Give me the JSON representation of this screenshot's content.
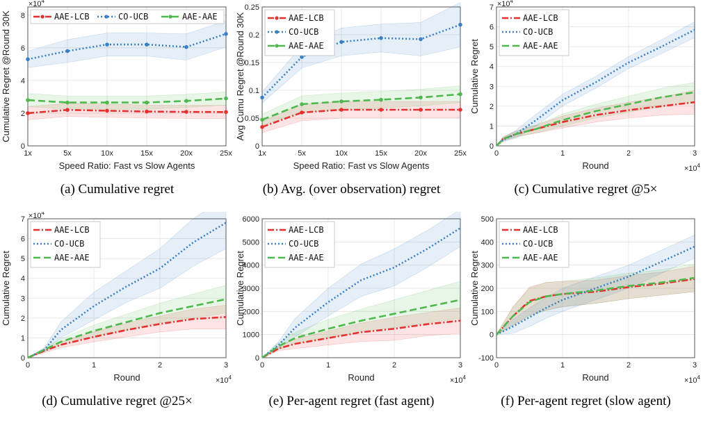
{
  "colors": {
    "lcb": "#e53030",
    "ucb": "#3b80c2",
    "aae": "#4eb84e"
  },
  "chart_data": [
    {
      "type": "line",
      "caption": "(a) Cumulative regret",
      "xlabel": "Speed Ratio: Fast vs Slow Agents",
      "ylabel": "Cumulative Regret @Round 30K",
      "x_categorical": true,
      "x": [
        1,
        5,
        10,
        15,
        20,
        25
      ],
      "x_ticks": [
        1,
        5,
        10,
        15,
        20,
        25
      ],
      "x_tick_labels": [
        "1x",
        "5x",
        "10x",
        "15x",
        "20x",
        "25x"
      ],
      "ylim": [
        0,
        8.5
      ],
      "y_ticks": [
        0,
        2,
        4,
        6,
        8
      ],
      "y_tick_labels": [
        "0",
        "2",
        "4",
        "6",
        "8"
      ],
      "y_multiplier": "×10^4",
      "legend": "top-left-row",
      "series": [
        {
          "name": "AAE-LCB",
          "style": "lcb",
          "values": [
            2.0,
            2.2,
            2.15,
            2.1,
            2.08,
            2.07
          ],
          "band": [
            0.4,
            0.4,
            0.4,
            0.4,
            0.4,
            0.4
          ]
        },
        {
          "name": "CO-UCB",
          "style": "ucb",
          "values": [
            5.3,
            5.8,
            6.2,
            6.2,
            6.05,
            6.85
          ],
          "band": [
            0.5,
            0.7,
            0.7,
            0.7,
            0.8,
            0.8
          ]
        },
        {
          "name": "AAE-AAE",
          "style": "aae",
          "values": [
            2.8,
            2.65,
            2.65,
            2.65,
            2.75,
            2.9
          ],
          "band": [
            0.4,
            0.4,
            0.4,
            0.4,
            0.4,
            0.4
          ]
        }
      ]
    },
    {
      "type": "line",
      "caption": "(b) Avg. (over observation) regret",
      "xlabel": "Speed Ratio: Fast vs Slow Agents",
      "ylabel": "Avg Cumu Regret @Round 30K",
      "x_categorical": true,
      "x": [
        1,
        5,
        10,
        15,
        20,
        25
      ],
      "x_ticks": [
        1,
        5,
        10,
        15,
        20,
        25
      ],
      "x_tick_labels": [
        "1x",
        "5x",
        "10x",
        "15x",
        "20x",
        "25x"
      ],
      "ylim": [
        0,
        0.25
      ],
      "y_ticks": [
        0,
        0.05,
        0.1,
        0.15,
        0.2,
        0.25
      ],
      "y_tick_labels": [
        "0",
        "0.05",
        "0.1",
        "0.15",
        "0.2",
        "0.25"
      ],
      "legend": "top-left",
      "series": [
        {
          "name": "AAE-LCB",
          "style": "lcb",
          "values": [
            0.034,
            0.06,
            0.065,
            0.065,
            0.065,
            0.065
          ],
          "band": [
            0.01,
            0.015,
            0.015,
            0.015,
            0.015,
            0.015
          ]
        },
        {
          "name": "CO-UCB",
          "style": "ucb",
          "values": [
            0.087,
            0.16,
            0.187,
            0.194,
            0.192,
            0.218
          ],
          "band": [
            0.01,
            0.02,
            0.025,
            0.025,
            0.03,
            0.04
          ]
        },
        {
          "name": "AAE-AAE",
          "style": "aae",
          "values": [
            0.047,
            0.075,
            0.08,
            0.083,
            0.087,
            0.093
          ],
          "band": [
            0.01,
            0.015,
            0.015,
            0.015,
            0.015,
            0.015
          ]
        }
      ]
    },
    {
      "type": "line",
      "caption": "(c) Cumulative regret @5×",
      "xlabel": "Round",
      "ylabel": "Cumulative Regret",
      "x_multiplier": "×10^4",
      "y_multiplier": "×10^4",
      "xlim": [
        0,
        3
      ],
      "x_ticks": [
        0,
        1,
        2,
        3
      ],
      "x_tick_labels": [
        "0",
        "1",
        "2",
        "3"
      ],
      "ylim": [
        0,
        7
      ],
      "y_ticks": [
        0,
        1,
        2,
        3,
        4,
        5,
        6,
        7
      ],
      "y_tick_labels": [
        "0",
        "1",
        "2",
        "3",
        "4",
        "5",
        "6",
        "7"
      ],
      "legend": "top-left",
      "x": [
        0,
        0.1,
        0.3,
        0.6,
        1.0,
        1.5,
        2.0,
        2.5,
        3.0
      ],
      "series": [
        {
          "name": "AAE-LCB",
          "style": "lcb",
          "values": [
            0,
            0.35,
            0.6,
            0.85,
            1.2,
            1.55,
            1.8,
            2.0,
            2.2
          ],
          "band": [
            0,
            0.1,
            0.15,
            0.2,
            0.3,
            0.35,
            0.4,
            0.45,
            0.6
          ]
        },
        {
          "name": "CO-UCB",
          "style": "ucb",
          "values": [
            0,
            0.3,
            0.6,
            1.3,
            2.3,
            3.2,
            4.2,
            5.0,
            5.85
          ],
          "band": [
            0,
            0.1,
            0.2,
            0.3,
            0.3,
            0.3,
            0.3,
            0.35,
            0.4
          ]
        },
        {
          "name": "AAE-AAE",
          "style": "aae",
          "values": [
            0,
            0.35,
            0.6,
            0.85,
            1.3,
            1.75,
            2.1,
            2.45,
            2.7
          ],
          "band": [
            0,
            0.1,
            0.15,
            0.2,
            0.3,
            0.35,
            0.4,
            0.45,
            0.5
          ]
        }
      ]
    },
    {
      "type": "line",
      "caption": "(d) Cumulative regret @25×",
      "xlabel": "Round",
      "ylabel": "Cumulative Regret",
      "x_multiplier": "×10^4",
      "y_multiplier": "×10^4",
      "xlim": [
        0,
        3
      ],
      "x_ticks": [
        0,
        1,
        2,
        3
      ],
      "x_tick_labels": [
        "0",
        "1",
        "2",
        "3"
      ],
      "ylim": [
        0,
        7
      ],
      "y_ticks": [
        0,
        1,
        2,
        3,
        4,
        5,
        6,
        7
      ],
      "y_tick_labels": [
        "0",
        "1",
        "2",
        "3",
        "4",
        "5",
        "6",
        "7"
      ],
      "legend": "top-left",
      "x": [
        0,
        0.25,
        0.5,
        1.0,
        1.5,
        2.0,
        2.5,
        3.0
      ],
      "series": [
        {
          "name": "AAE-LCB",
          "style": "lcb",
          "values": [
            0,
            0.35,
            0.65,
            1.05,
            1.4,
            1.7,
            1.95,
            2.05
          ],
          "band": [
            0,
            0.1,
            0.15,
            0.25,
            0.35,
            0.4,
            0.5,
            0.6
          ]
        },
        {
          "name": "CO-UCB",
          "style": "ucb",
          "values": [
            0,
            0.4,
            1.4,
            2.6,
            3.6,
            4.5,
            5.8,
            6.8
          ],
          "band": [
            0,
            0.1,
            0.4,
            0.7,
            0.8,
            1.0,
            1.2,
            1.3
          ]
        },
        {
          "name": "AAE-AAE",
          "style": "aae",
          "values": [
            0,
            0.4,
            0.8,
            1.35,
            1.8,
            2.25,
            2.6,
            2.95
          ],
          "band": [
            0,
            0.1,
            0.15,
            0.3,
            0.4,
            0.5,
            0.6,
            0.7
          ]
        }
      ]
    },
    {
      "type": "line",
      "caption": "(e) Per-agent regret (fast agent)",
      "xlabel": "Round",
      "ylabel": "Cumulative Regret",
      "x_multiplier": "×10^4",
      "xlim": [
        0,
        3
      ],
      "x_ticks": [
        0,
        1,
        2,
        3
      ],
      "x_tick_labels": [
        "0",
        "1",
        "2",
        "3"
      ],
      "ylim": [
        0,
        6000
      ],
      "y_ticks": [
        0,
        1000,
        2000,
        3000,
        4000,
        5000,
        6000
      ],
      "y_tick_labels": [
        "0",
        "1000",
        "2000",
        "3000",
        "4000",
        "5000",
        "6000"
      ],
      "legend": "top-left",
      "x": [
        0,
        0.25,
        0.5,
        1.0,
        1.5,
        2.0,
        2.5,
        3.0
      ],
      "series": [
        {
          "name": "AAE-LCB",
          "style": "lcb",
          "values": [
            0,
            400,
            600,
            850,
            1100,
            1250,
            1450,
            1600
          ],
          "band": [
            0,
            100,
            200,
            300,
            400,
            500,
            500,
            550
          ]
        },
        {
          "name": "CO-UCB",
          "style": "ucb",
          "values": [
            0,
            550,
            1300,
            2400,
            3350,
            3900,
            4700,
            5600
          ],
          "band": [
            0,
            150,
            400,
            600,
            700,
            800,
            800,
            800
          ]
        },
        {
          "name": "AAE-AAE",
          "style": "aae",
          "values": [
            0,
            500,
            850,
            1250,
            1600,
            1900,
            2200,
            2500
          ],
          "band": [
            0,
            150,
            250,
            400,
            500,
            600,
            700,
            800
          ]
        }
      ]
    },
    {
      "type": "line",
      "caption": "(f) Per-agent regret (slow agent)",
      "xlabel": "Round",
      "ylabel": "Cumulative Regret",
      "x_multiplier": "×10^4",
      "xlim": [
        0,
        3
      ],
      "x_ticks": [
        0,
        1,
        2,
        3
      ],
      "x_tick_labels": [
        "0",
        "1",
        "2",
        "3"
      ],
      "ylim": [
        -100,
        500
      ],
      "y_ticks": [
        -100,
        0,
        100,
        200,
        300,
        400,
        500
      ],
      "y_tick_labels": [
        "-100",
        "0",
        "100",
        "200",
        "300",
        "400",
        "500"
      ],
      "legend": "top-left",
      "x": [
        0,
        0.25,
        0.5,
        0.75,
        1.0,
        1.5,
        2.0,
        2.5,
        3.0
      ],
      "series": [
        {
          "name": "AAE-LCB",
          "style": "lcb",
          "values": [
            0,
            80,
            145,
            165,
            175,
            185,
            205,
            220,
            240
          ],
          "band": [
            0,
            40,
            60,
            60,
            55,
            50,
            50,
            50,
            55
          ]
        },
        {
          "name": "CO-UCB",
          "style": "ucb",
          "values": [
            0,
            35,
            75,
            115,
            150,
            200,
            250,
            315,
            380
          ],
          "band": [
            0,
            30,
            40,
            45,
            50,
            50,
            50,
            50,
            50
          ]
        },
        {
          "name": "AAE-AAE",
          "style": "aae",
          "values": [
            0,
            80,
            140,
            165,
            175,
            190,
            210,
            225,
            245
          ],
          "band": [
            0,
            40,
            60,
            60,
            55,
            55,
            55,
            55,
            60
          ]
        }
      ]
    }
  ]
}
